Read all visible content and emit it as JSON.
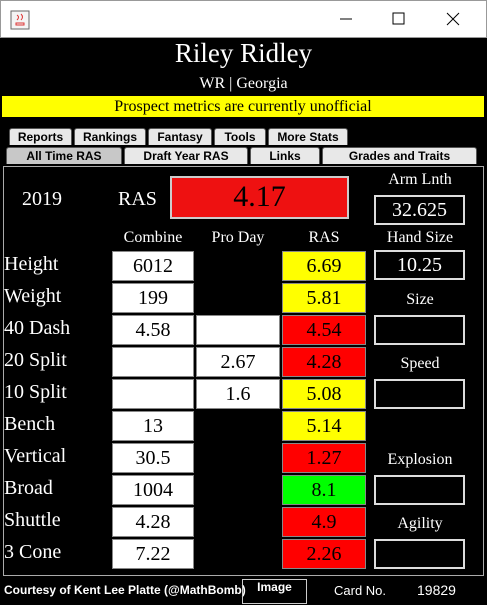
{
  "header": {
    "name": "Riley Ridley",
    "subtitle": "WR | Georgia",
    "banner": "Prospect metrics are currently unofficial"
  },
  "tabs": {
    "row1": [
      "Reports",
      "Rankings",
      "Fantasy",
      "Tools",
      "More Stats"
    ],
    "row2": [
      "All Time RAS",
      "Draft Year RAS",
      "Links",
      "Grades and Traits"
    ],
    "selected": "All Time RAS"
  },
  "summary": {
    "year": "2019",
    "ras_label": "RAS",
    "ras": "4.17",
    "ras_color": "#ee1111",
    "arm_label": "Arm Lnth",
    "arm": "32.625",
    "hand_label": "Hand Size",
    "hand": "10.25"
  },
  "columns": [
    "Combine",
    "Pro Day",
    "RAS"
  ],
  "rows": [
    {
      "label": "Height",
      "combine": "6012",
      "pro_day": null,
      "pro_day_box": false,
      "ras": "6.69",
      "color": "#ffff00"
    },
    {
      "label": "Weight",
      "combine": "199",
      "pro_day": null,
      "pro_day_box": false,
      "ras": "5.81",
      "color": "#ffff00"
    },
    {
      "label": "40 Dash",
      "combine": "4.58",
      "pro_day": null,
      "pro_day_box": true,
      "ras": "4.54",
      "color": "#ff0000"
    },
    {
      "label": "20 Split",
      "combine": null,
      "pro_day": "2.67",
      "pro_day_box": true,
      "ras": "4.28",
      "color": "#ff0000"
    },
    {
      "label": "10 Split",
      "combine": null,
      "pro_day": "1.6",
      "pro_day_box": true,
      "ras": "5.08",
      "color": "#ffff00"
    },
    {
      "label": "Bench",
      "combine": "13",
      "pro_day": null,
      "pro_day_box": false,
      "ras": "5.14",
      "color": "#ffff00"
    },
    {
      "label": "Vertical",
      "combine": "30.5",
      "pro_day": null,
      "pro_day_box": false,
      "ras": "1.27",
      "color": "#ff0000"
    },
    {
      "label": "Broad",
      "combine": "1004",
      "pro_day": null,
      "pro_day_box": false,
      "ras": "8.1",
      "color": "#00ff00"
    },
    {
      "label": "Shuttle",
      "combine": "4.28",
      "pro_day": null,
      "pro_day_box": false,
      "ras": "4.9",
      "color": "#ff0000"
    },
    {
      "label": "3 Cone",
      "combine": "7.22",
      "pro_day": null,
      "pro_day_box": false,
      "ras": "2.26",
      "color": "#ff0000"
    }
  ],
  "groups": [
    "Size",
    "Speed",
    "Explosion",
    "Agility"
  ],
  "footer": {
    "credit": "Courtesy of Kent Lee Platte (@MathBomb)",
    "button": "Image",
    "card_label": "Card No.",
    "card": "19829"
  }
}
